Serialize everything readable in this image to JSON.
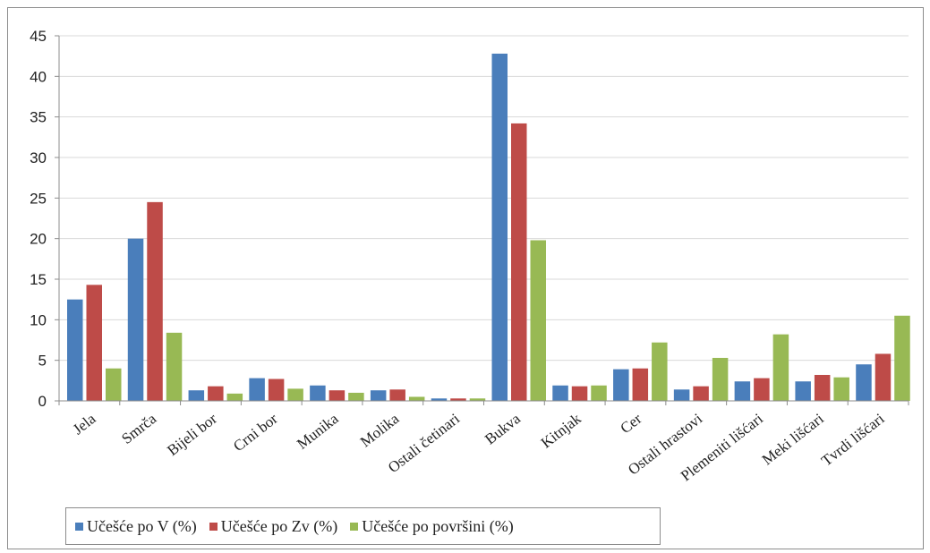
{
  "chart_data": {
    "type": "bar",
    "title": "",
    "xlabel": "",
    "ylabel": "",
    "ylim": [
      0,
      45
    ],
    "yticks": [
      0,
      5,
      10,
      15,
      20,
      25,
      30,
      35,
      40,
      45
    ],
    "grid": true,
    "legend_position": "bottom-left",
    "categories": [
      "Jela",
      "Smrča",
      "Bijeli bor",
      "Crni bor",
      "Munika",
      "Molika",
      "Ostali četinari",
      "Bukva",
      "Kitnjak",
      "Cer",
      "Ostali hrastovi",
      "Plemeniti lišćari",
      "Meki lišćari",
      "Tvrdi lišćari"
    ],
    "series": [
      {
        "name": "Učešće po V (%)",
        "color": "#4a7ebb",
        "values": [
          12.5,
          20,
          1.3,
          2.8,
          1.9,
          1.3,
          0.3,
          42.8,
          1.9,
          3.9,
          1.4,
          2.4,
          2.4,
          4.5
        ]
      },
      {
        "name": "Učešće po Zv (%)",
        "color": "#be4b48",
        "values": [
          14.3,
          24.5,
          1.8,
          2.7,
          1.3,
          1.4,
          0.3,
          34.2,
          1.8,
          4.0,
          1.8,
          2.8,
          3.2,
          5.8
        ]
      },
      {
        "name": "Učešće po površini (%)",
        "color": "#98b954",
        "values": [
          4.0,
          8.4,
          0.9,
          1.5,
          1.0,
          0.5,
          0.3,
          19.8,
          1.9,
          7.2,
          5.3,
          8.2,
          2.9,
          10.5
        ]
      }
    ]
  }
}
